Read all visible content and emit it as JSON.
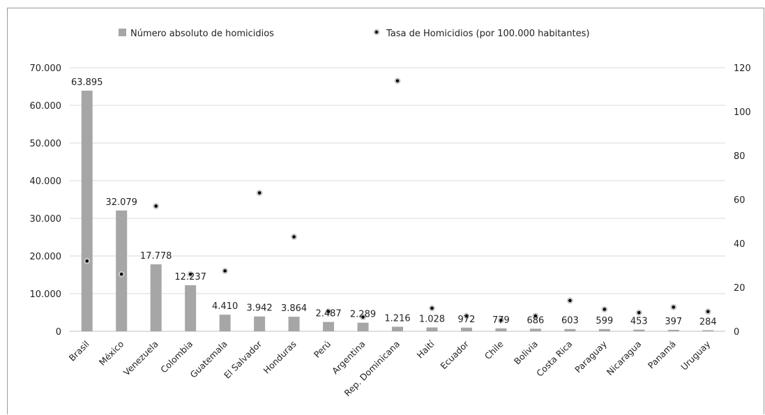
{
  "chart_data": {
    "type": "bar",
    "categories": [
      "Brasil",
      "México",
      "Venezuela",
      "Colombia",
      "Guatemala",
      "El Salvador",
      "Honduras",
      "Perú",
      "Argentina",
      "Rep. Dominicana",
      "Haití",
      "Ecuador",
      "Chile",
      "Bolivia",
      "Costa Rica",
      "Paraguay",
      "Nicaragua",
      "Panamá",
      "Uruguay"
    ],
    "series": [
      {
        "name": "Número absoluto de homicidios",
        "type": "bar",
        "axis": "left",
        "values": [
          63895,
          32079,
          17778,
          12237,
          4410,
          3942,
          3864,
          2487,
          2289,
          1216,
          1028,
          972,
          779,
          686,
          603,
          599,
          453,
          397,
          284
        ],
        "labels": [
          "63.895",
          "32.079",
          "17.778",
          "12.237",
          "4.410",
          "3.942",
          "3.864",
          "2.487",
          "2.289",
          "1.216",
          "1.028",
          "972",
          "779",
          "686",
          "603",
          "599",
          "453",
          "397",
          "284"
        ],
        "color": "#a6a6a6"
      },
      {
        "name": "Tasa de Homicidios (por 100.000 habitantes)",
        "type": "scatter",
        "axis": "right",
        "values": [
          32,
          26,
          57,
          26,
          27.5,
          63,
          43,
          9,
          6.5,
          114,
          10.5,
          7,
          5,
          7,
          14,
          10,
          8.5,
          11,
          9
        ],
        "color": "#000000"
      }
    ],
    "y_left": {
      "range": [
        0,
        70000
      ],
      "ticks": [
        "0",
        "10.000",
        "20.000",
        "30.000",
        "40.000",
        "50.000",
        "60.000",
        "70.000"
      ]
    },
    "y_right": {
      "range": [
        0,
        120
      ],
      "ticks": [
        "0",
        "20",
        "40",
        "60",
        "80",
        "100",
        "120"
      ]
    },
    "gridlines": true,
    "legend_position": "top"
  }
}
